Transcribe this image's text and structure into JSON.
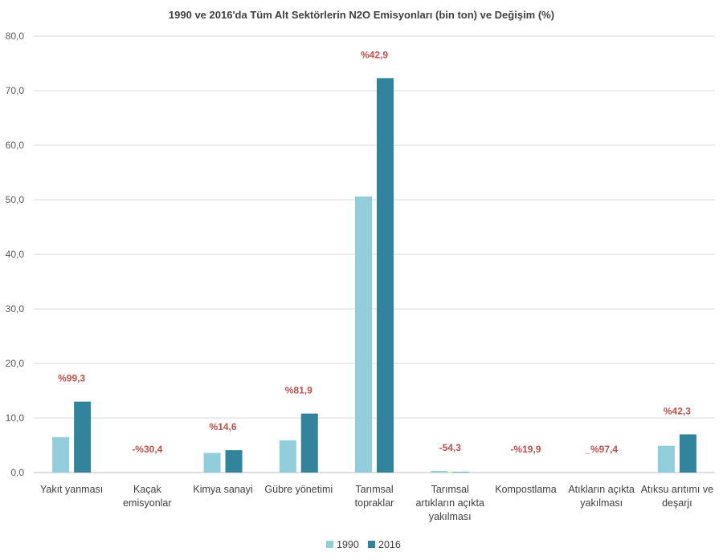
{
  "chart_data": {
    "type": "bar",
    "title": "1990 ve 2016'da Tüm Alt Sektörlerin N2O Emisyonları (bin ton) ve Değişim (%)",
    "xlabel": "",
    "ylabel": "",
    "ylim": [
      0,
      80
    ],
    "yticks": [
      "0,0",
      "10,0",
      "20,0",
      "30,0",
      "40,0",
      "50,0",
      "60,0",
      "70,0",
      "80,0"
    ],
    "grid": true,
    "legend_position": "bottom",
    "categories": [
      [
        "Yakıt yanması"
      ],
      [
        "Kaçak",
        "emisyonlar"
      ],
      [
        "Kimya sanayi"
      ],
      [
        "Gübre yönetimi"
      ],
      [
        "Tarımsal",
        "topraklar"
      ],
      [
        "Tarımsal",
        "artıkların açıkta",
        "yakılması"
      ],
      [
        "Kompostlama"
      ],
      [
        "Atıkların açıkta",
        "yakılması"
      ],
      [
        "Atıksu arıtımı ve",
        "deşarjı"
      ]
    ],
    "series": [
      {
        "name": "1990",
        "color": "#92cddc",
        "values": [
          6.5,
          0.0,
          3.6,
          5.9,
          50.6,
          0.3,
          0.0,
          0.0,
          4.9
        ]
      },
      {
        "name": "2016",
        "color": "#31849b",
        "values": [
          13.0,
          0.0,
          4.1,
          10.8,
          72.3,
          0.1,
          0.0,
          0.0,
          7.0
        ]
      }
    ],
    "change_labels": [
      "%99,3",
      "-%30,4",
      "%14,6",
      "%81,9",
      "%42,9",
      "-54,3",
      "-%19,9",
      "_%97,4",
      "%42,3"
    ]
  }
}
